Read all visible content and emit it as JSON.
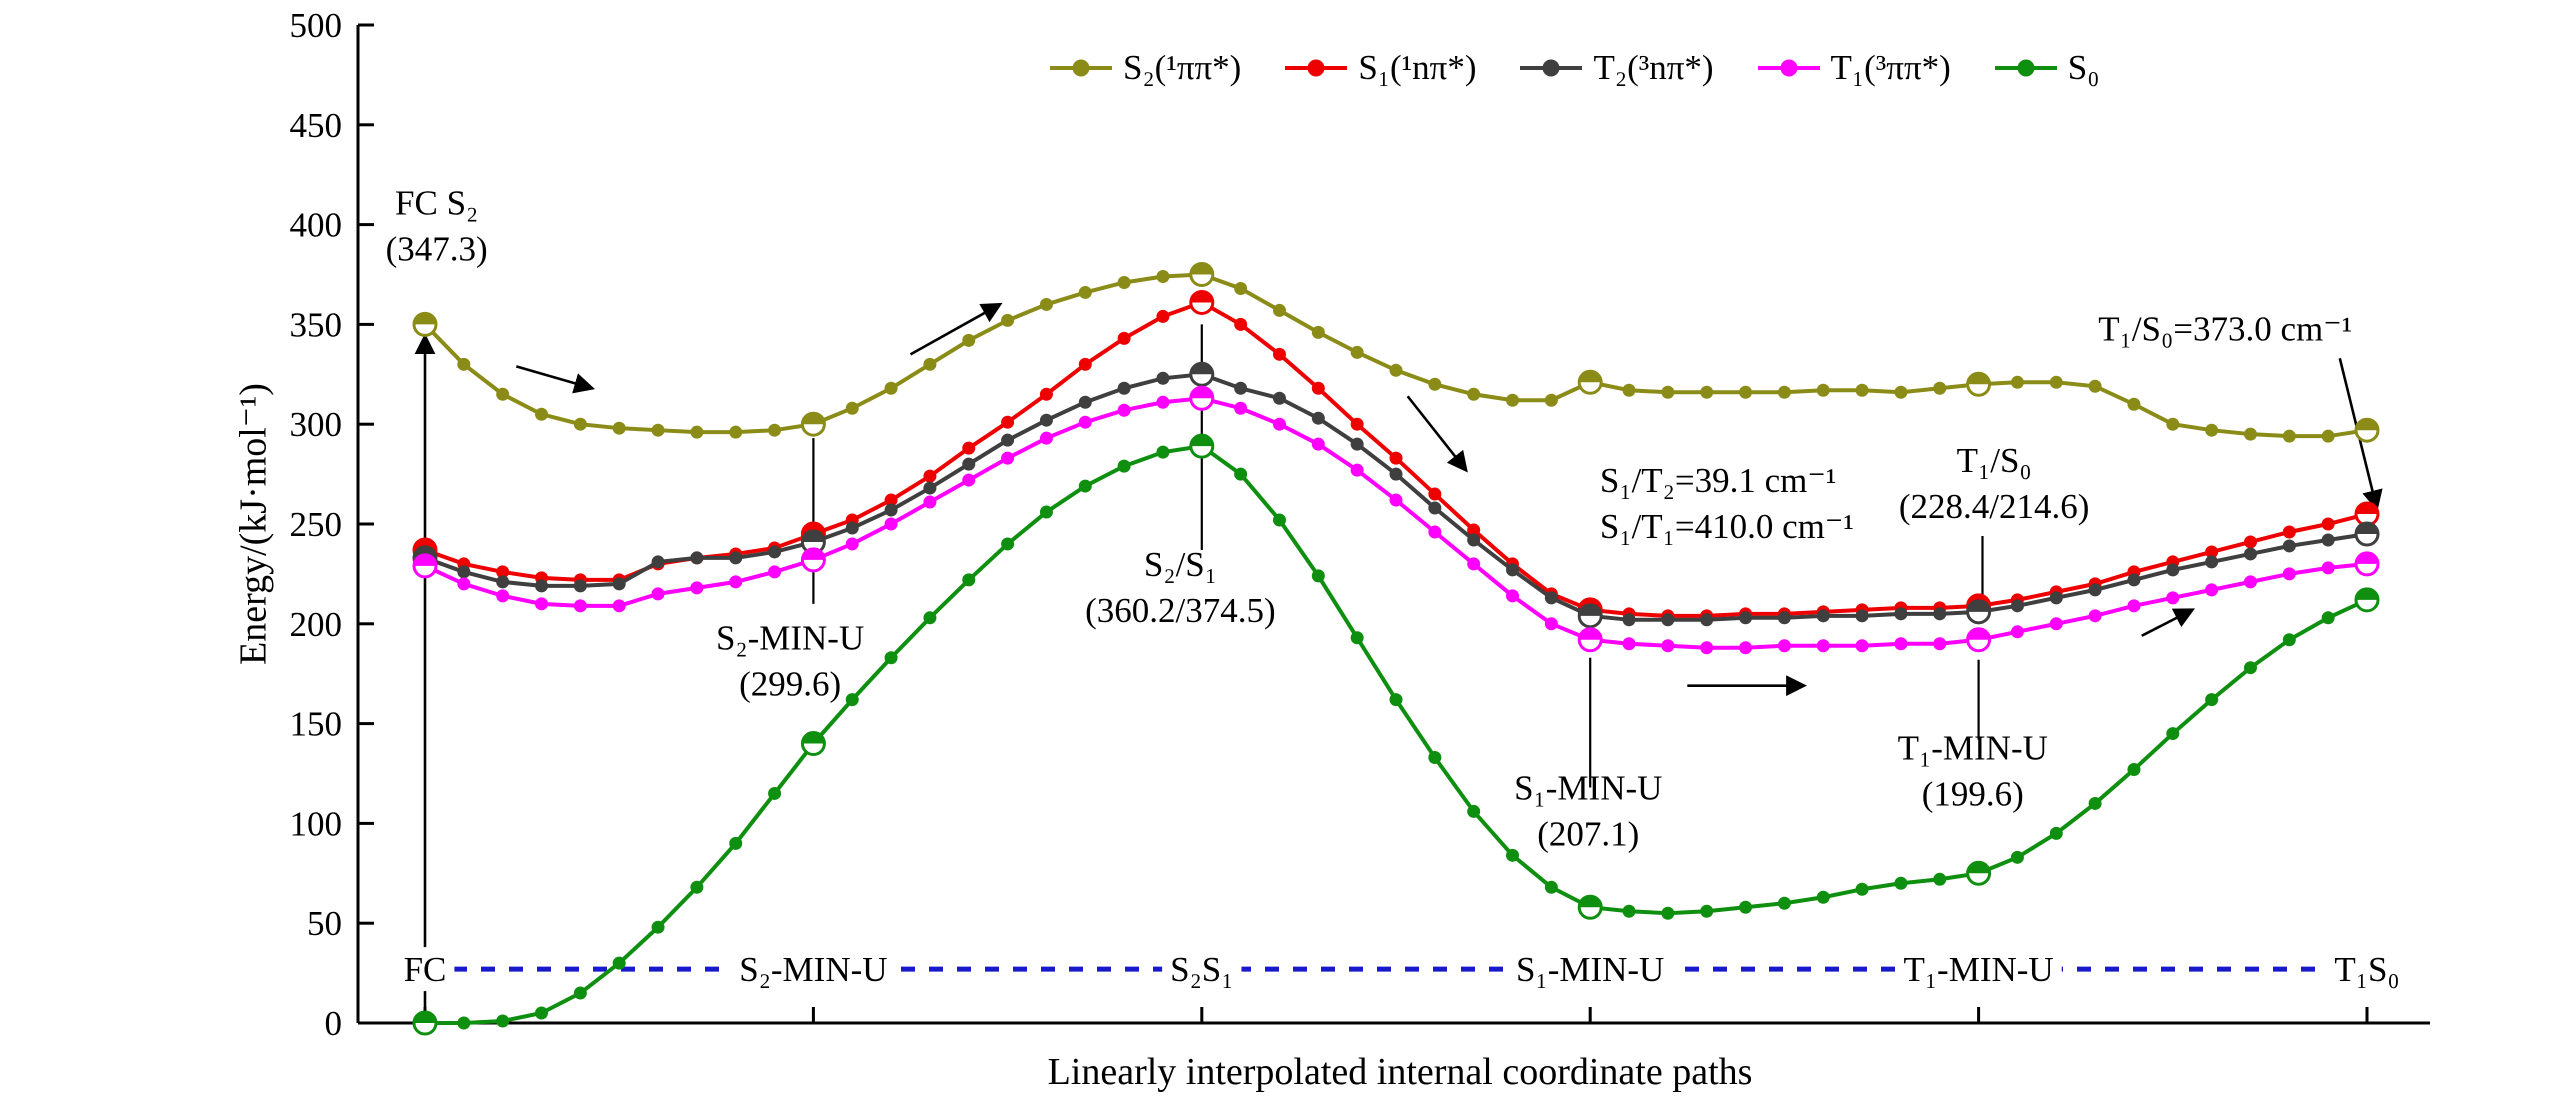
{
  "figure": {
    "y_axis_label": "Energy/(kJ·mol⁻¹)",
    "x_axis_label": "Linearly interpolated internal coordinate paths"
  },
  "legend": {
    "items": [
      {
        "label": "S₂(¹ππ*)",
        "color": "#8b8b17"
      },
      {
        "label": "S₁(¹nπ*)",
        "color": "#ee0000"
      },
      {
        "label": "T₂(³nπ*)",
        "color": "#3f3f3f"
      },
      {
        "label": "T₁(³ππ*)",
        "color": "#ff00ff"
      },
      {
        "label": "S₀",
        "color": "#0f8f0f"
      }
    ]
  },
  "chart_data": {
    "type": "line",
    "title": "",
    "xlabel": "Linearly interpolated internal coordinate paths",
    "ylabel": "Energy/(kJ·mol⁻¹)",
    "ylim": [
      0,
      500
    ],
    "y_ticks": [
      0,
      50,
      100,
      150,
      200,
      250,
      300,
      350,
      400,
      450,
      500
    ],
    "x": [
      0,
      2,
      4,
      6,
      8,
      10,
      12,
      14,
      16,
      18,
      20,
      22,
      24,
      26,
      28,
      30,
      32,
      34,
      36,
      38,
      40,
      42,
      44,
      46,
      48,
      50,
      52,
      54,
      56,
      58,
      60,
      62,
      64,
      66,
      68,
      70,
      72,
      74,
      76,
      78,
      80,
      82,
      84,
      86,
      88,
      90,
      92,
      94,
      96,
      98,
      100
    ],
    "series": [
      {
        "key": "s2",
        "name": "S₂(¹ππ*)",
        "color": "#8b8b17",
        "values": [
          350,
          330,
          315,
          305,
          300,
          298,
          297,
          296,
          296,
          297,
          300,
          308,
          318,
          330,
          342,
          352,
          360,
          366,
          371,
          374,
          375,
          368,
          357,
          346,
          336,
          327,
          320,
          315,
          312,
          312,
          321,
          317,
          316,
          316,
          316,
          316,
          317,
          317,
          316,
          318,
          320,
          321,
          321,
          319,
          310,
          300,
          297,
          295,
          294,
          294,
          297
        ]
      },
      {
        "key": "s1",
        "name": "S₁(¹nπ*)",
        "color": "#ee0000",
        "values": [
          237,
          230,
          226,
          223,
          222,
          222,
          230,
          233,
          235,
          238,
          245,
          252,
          262,
          274,
          288,
          301,
          315,
          330,
          343,
          354,
          361,
          350,
          335,
          318,
          300,
          283,
          265,
          247,
          230,
          215,
          207,
          205,
          204,
          204,
          205,
          205,
          206,
          207,
          208,
          208,
          209,
          212,
          216,
          220,
          226,
          231,
          236,
          241,
          246,
          250,
          255
        ]
      },
      {
        "key": "t2",
        "name": "T₂(³nπ*)",
        "color": "#3f3f3f",
        "values": [
          233,
          226,
          221,
          219,
          219,
          220,
          231,
          233,
          233,
          236,
          241,
          248,
          257,
          268,
          280,
          292,
          302,
          311,
          318,
          323,
          325,
          318,
          313,
          303,
          290,
          275,
          258,
          242,
          227,
          213,
          204,
          202,
          202,
          202,
          203,
          203,
          204,
          204,
          205,
          205,
          206,
          209,
          213,
          217,
          222,
          227,
          231,
          235,
          239,
          242,
          245
        ]
      },
      {
        "key": "t1",
        "name": "T₁(³ππ*)",
        "color": "#ff00ff",
        "values": [
          229,
          220,
          214,
          210,
          209,
          209,
          215,
          218,
          221,
          226,
          232,
          240,
          250,
          261,
          272,
          283,
          293,
          301,
          307,
          311,
          313,
          308,
          300,
          290,
          277,
          262,
          246,
          230,
          214,
          200,
          192,
          190,
          189,
          188,
          188,
          189,
          189,
          189,
          190,
          190,
          192,
          196,
          200,
          204,
          209,
          213,
          217,
          221,
          225,
          228,
          230
        ]
      },
      {
        "key": "s0",
        "name": "S₀",
        "color": "#0f8f0f",
        "values": [
          0,
          0,
          1,
          5,
          15,
          30,
          48,
          68,
          90,
          115,
          140,
          162,
          183,
          203,
          222,
          240,
          256,
          269,
          279,
          286,
          289,
          275,
          252,
          224,
          193,
          162,
          133,
          106,
          84,
          68,
          58,
          56,
          55,
          56,
          58,
          60,
          63,
          67,
          70,
          72,
          75,
          83,
          95,
          110,
          127,
          145,
          162,
          178,
          192,
          203,
          212
        ]
      }
    ],
    "landmark_indices": [
      0,
      10,
      20,
      30,
      40,
      50
    ],
    "path_labels": [
      {
        "label": "FC",
        "u": 0
      },
      {
        "label": "S₂-MIN-U",
        "u": 20
      },
      {
        "label": "S₂S₁",
        "u": 40
      },
      {
        "label": "S₁-MIN-U",
        "u": 60
      },
      {
        "label": "T₁-MIN-U",
        "u": 80
      },
      {
        "label": "T₁S₀",
        "u": 100
      }
    ],
    "baseline": {
      "energy": 27,
      "color": "#1a1acd",
      "style": "dashed"
    },
    "annotations": [
      {
        "u": 0.6,
        "e": 405,
        "align": "middle",
        "lines": [
          "FC S₂",
          "(347.3)"
        ]
      },
      {
        "u": 18.8,
        "e": 187,
        "align": "middle",
        "lines": [
          "S₂-MIN-U",
          "(299.6)"
        ]
      },
      {
        "u": 38.9,
        "e": 224,
        "align": "middle",
        "lines": [
          "S₂/S₁",
          "(360.2/374.5)"
        ]
      },
      {
        "u": 59.9,
        "e": 112,
        "align": "middle",
        "lines": [
          "S₁-MIN-U",
          "(207.1)"
        ]
      },
      {
        "u": 79.7,
        "e": 132,
        "align": "middle",
        "lines": [
          "T₁-MIN-U",
          "(199.6)"
        ]
      },
      {
        "u": 60.5,
        "e": 266,
        "align": "start",
        "lines": [
          "S₁/T₂=39.1 cm⁻¹",
          "S₁/T₁=410.0 cm⁻¹"
        ]
      },
      {
        "u": 80.8,
        "e": 276,
        "align": "middle",
        "lines": [
          "T₁/S₀",
          "(228.4/214.6)"
        ]
      },
      {
        "u": 92.7,
        "e": 342,
        "align": "middle",
        "lines": [
          "T₁/S₀=373.0 cm⁻¹"
        ]
      }
    ],
    "vlines": [
      {
        "u": 20,
        "e1": 210,
        "e2": 293
      },
      {
        "u": 40,
        "e1": 237,
        "e2": 350
      },
      {
        "u": 60,
        "e1": 118,
        "e2": 183
      },
      {
        "u": 80,
        "e1": 142,
        "e2": 182
      },
      {
        "u": 80.2,
        "e1": 244,
        "e2": 211
      }
    ],
    "arrows": [
      {
        "u1": 0,
        "e1": 2,
        "u2": 0,
        "e2": 344
      },
      {
        "u1": 4.7,
        "e1": 329,
        "u2": 8.6,
        "e2": 318
      },
      {
        "u1": 25,
        "e1": 335,
        "u2": 29.6,
        "e2": 360
      },
      {
        "u1": 50.6,
        "e1": 314,
        "u2": 53.6,
        "e2": 277
      },
      {
        "u1": 65,
        "e1": 169,
        "u2": 71,
        "e2": 169
      },
      {
        "u1": 88.4,
        "e1": 194,
        "u2": 91,
        "e2": 207
      },
      {
        "u1": 98.6,
        "e1": 333,
        "u2": 100.5,
        "e2": 258
      }
    ]
  }
}
